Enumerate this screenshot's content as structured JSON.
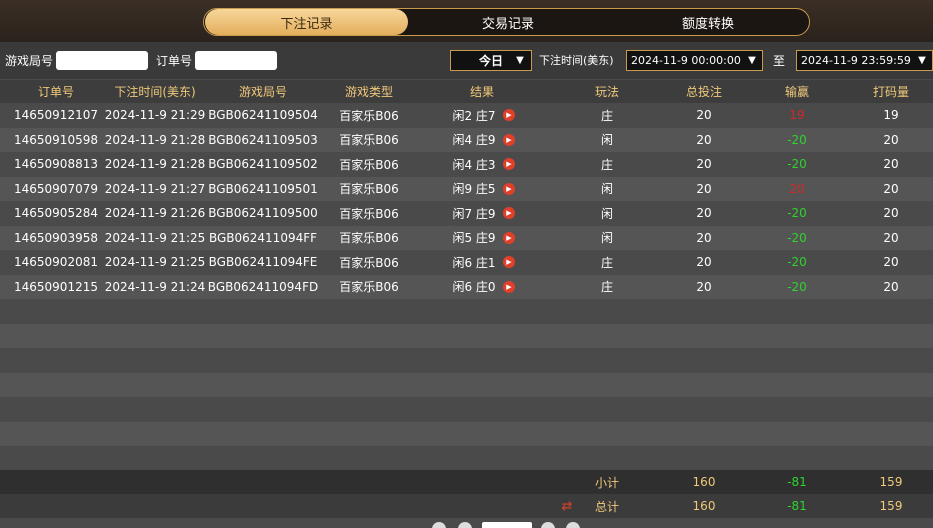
{
  "tabs": [
    "下注记录",
    "交易记录",
    "额度转换"
  ],
  "filters": {
    "round_label": "游戏局号",
    "order_label": "订单号",
    "period": "今日",
    "time_label": "下注时间(美东)",
    "start": "2024-11-9 00:00:00",
    "to": "至",
    "end": "2024-11-9 23:59:59"
  },
  "table": {
    "headers": [
      "订单号",
      "下注时间(美东)",
      "游戏局号",
      "游戏类型",
      "结果",
      "玩法",
      "总投注",
      "输赢",
      "打码量"
    ],
    "rows": [
      [
        "14650912107",
        "2024-11-9 21:29",
        "BGB06241109504",
        "百家乐B06",
        "闲2 庄7",
        "庄",
        20,
        19,
        19
      ],
      [
        "14650910598",
        "2024-11-9 21:28",
        "BGB06241109503",
        "百家乐B06",
        "闲4 庄9",
        "闲",
        20,
        -20,
        20
      ],
      [
        "14650908813",
        "2024-11-9 21:28",
        "BGB06241109502",
        "百家乐B06",
        "闲4 庄3",
        "庄",
        20,
        -20,
        20
      ],
      [
        "14650907079",
        "2024-11-9 21:27",
        "BGB06241109501",
        "百家乐B06",
        "闲9 庄5",
        "闲",
        20,
        20,
        20
      ],
      [
        "14650905284",
        "2024-11-9 21:26",
        "BGB06241109500",
        "百家乐B06",
        "闲7 庄9",
        "闲",
        20,
        -20,
        20
      ],
      [
        "14650903958",
        "2024-11-9 21:25",
        "BGB062411094FF",
        "百家乐B06",
        "闲5 庄9",
        "闲",
        20,
        -20,
        20
      ],
      [
        "14650902081",
        "2024-11-9 21:25",
        "BGB062411094FE",
        "百家乐B06",
        "闲6 庄1",
        "庄",
        20,
        -20,
        20
      ],
      [
        "14650901215",
        "2024-11-9 21:24",
        "BGB062411094FD",
        "百家乐B06",
        "闲6 庄0",
        "庄",
        20,
        -20,
        20
      ]
    ],
    "subtotal": [
      "小计",
      160,
      -81,
      159
    ],
    "total": [
      "总计",
      160,
      -81,
      159
    ]
  }
}
